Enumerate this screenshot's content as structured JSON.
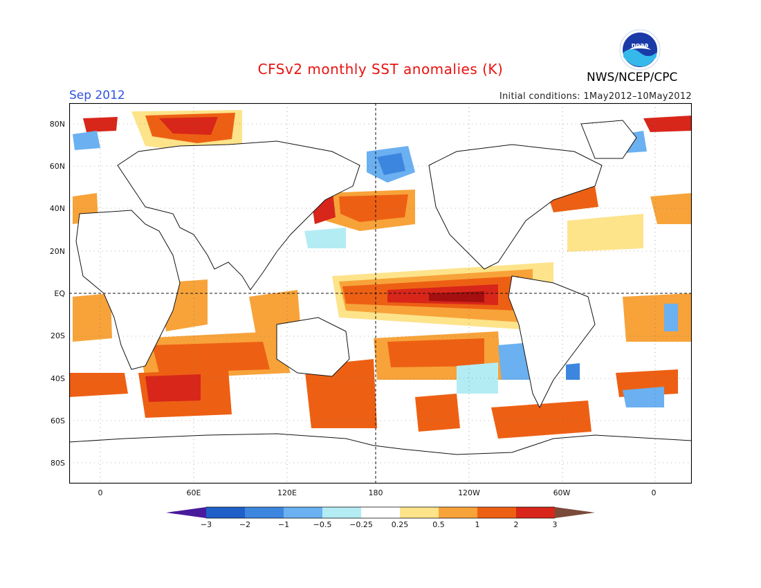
{
  "header": {
    "title": "CFSv2 monthly SST anomalies (K)",
    "month": "Sep 2012",
    "initial_conditions": "Initial conditions: 1May2012–10May2012",
    "agency": "NWS/NCEP/CPC",
    "logo_text": "noaa"
  },
  "map": {
    "lat_labels": [
      "80N",
      "60N",
      "40N",
      "20N",
      "EQ",
      "20S",
      "40S",
      "60S",
      "80S"
    ],
    "lon_labels": [
      "0",
      "60E",
      "120E",
      "180",
      "120W",
      "60W",
      "0"
    ],
    "colors": {
      "c_lt3": "#4a1a9c",
      "c_m3": "#1f5fc8",
      "c_m2": "#3c86e0",
      "c_m1": "#6bb0f0",
      "c_m05": "#b4ecf4",
      "c_zero": "#ffffff",
      "c_p025": "#fde38a",
      "c_p05": "#f7a33a",
      "c_p1": "#ed6014",
      "c_p2": "#d8261a",
      "c_p3": "#a50f0f",
      "c_gt3": "#7a4a3a"
    }
  },
  "colorbar": {
    "labels": [
      "−3",
      "−2",
      "−1",
      "−0.5",
      "−0.25",
      "0.25",
      "0.5",
      "1",
      "2",
      "3"
    ]
  }
}
